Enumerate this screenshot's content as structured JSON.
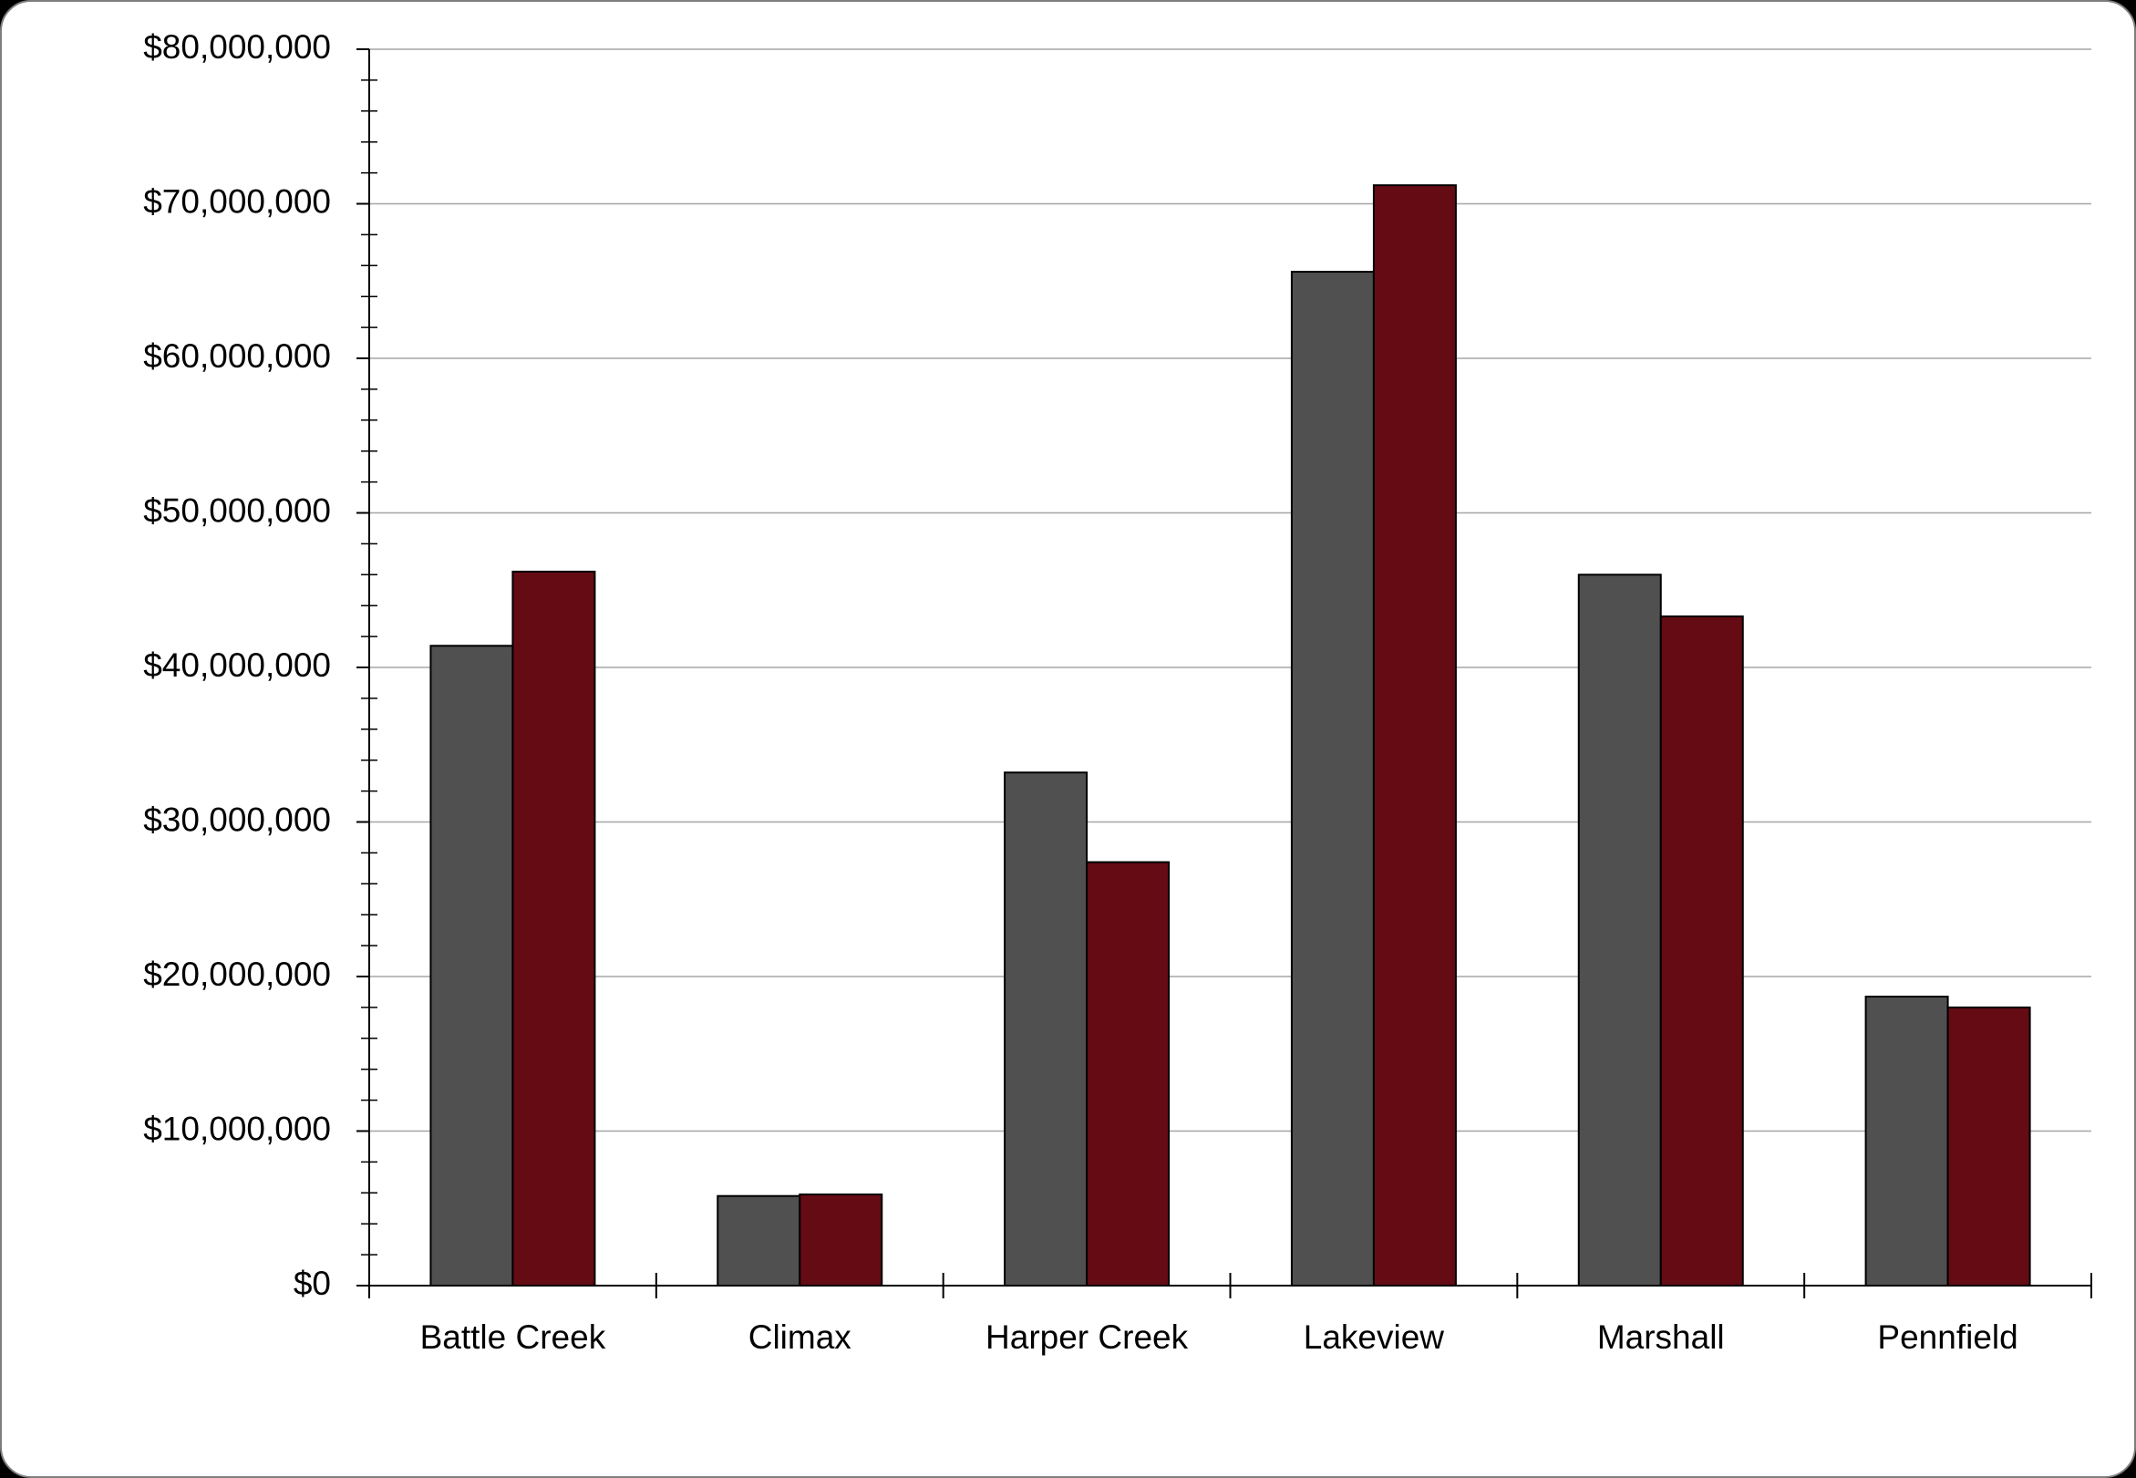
{
  "chart_data": {
    "type": "bar",
    "title": "",
    "xlabel": "",
    "ylabel": "",
    "ylim": [
      0,
      80000000
    ],
    "y_major_step": 10000000,
    "y_minor_step": 2000000,
    "y_tick_labels": [
      "$0",
      "$10,000,000",
      "$20,000,000",
      "$30,000,000",
      "$40,000,000",
      "$50,000,000",
      "$60,000,000",
      "$70,000,000",
      "$80,000,000"
    ],
    "grid": true,
    "legend": "none",
    "categories": [
      "Battle Creek",
      "Climax",
      "Harper Creek",
      "Lakeview",
      "Marshall",
      "Pennfield"
    ],
    "series": [
      {
        "color": "#505050",
        "values": [
          41400000,
          5800000,
          33200000,
          65600000,
          46000000,
          18700000
        ]
      },
      {
        "color": "#640b14",
        "values": [
          46200000,
          5900000,
          27400000,
          71200000,
          43300000,
          18000000
        ]
      }
    ]
  }
}
